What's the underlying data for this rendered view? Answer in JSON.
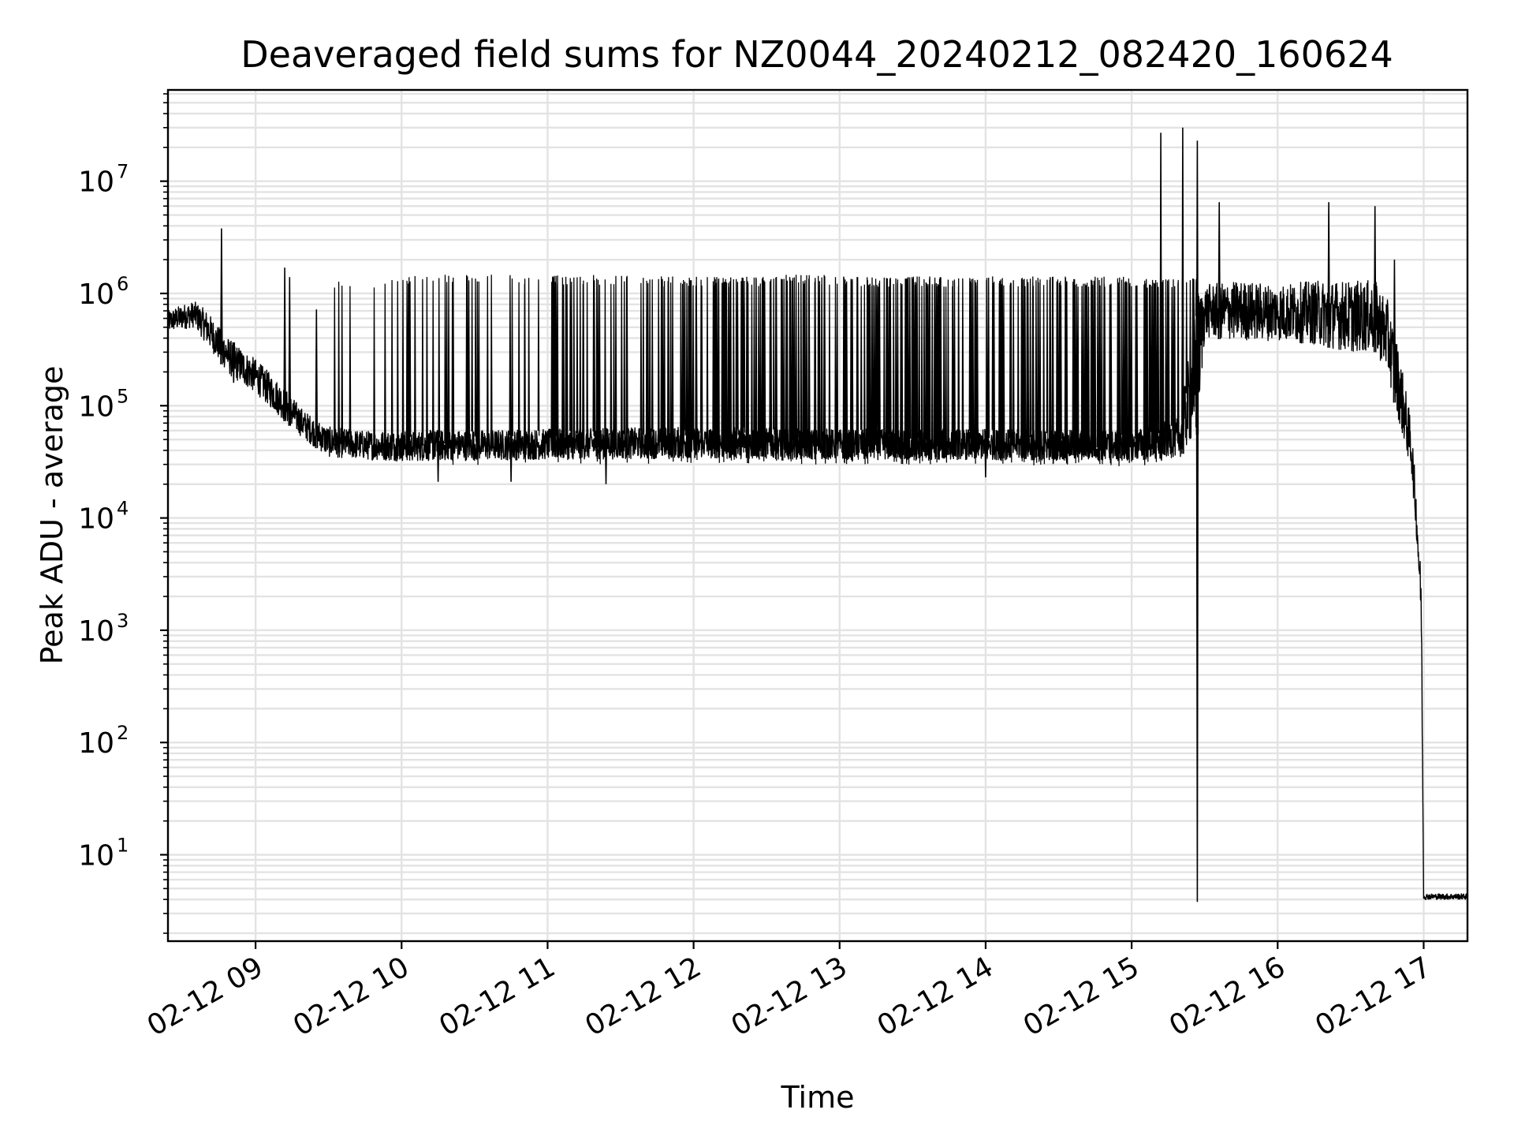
{
  "chart_data": {
    "type": "line",
    "title": "Deaveraged field sums for NZ0044_20240212_082420_160624",
    "xlabel": "Time",
    "ylabel": "Peak ADU - average",
    "x_axis_type": "time",
    "y_scale": "log",
    "xlim": [
      "2024-02-12T08:24",
      "2024-02-12T17:18"
    ],
    "ylim": [
      1.7,
      65000000
    ],
    "grid": true,
    "grid_minor": true,
    "legend": "none",
    "line_color": "#000000",
    "gridline_color": "#e3e3e3",
    "x_ticks": [
      {
        "value": "2024-02-12T09:00",
        "label": "02-12 09"
      },
      {
        "value": "2024-02-12T10:00",
        "label": "02-12 10"
      },
      {
        "value": "2024-02-12T11:00",
        "label": "02-12 11"
      },
      {
        "value": "2024-02-12T12:00",
        "label": "02-12 12"
      },
      {
        "value": "2024-02-12T13:00",
        "label": "02-12 13"
      },
      {
        "value": "2024-02-12T14:00",
        "label": "02-12 14"
      },
      {
        "value": "2024-02-12T15:00",
        "label": "02-12 15"
      },
      {
        "value": "2024-02-12T16:00",
        "label": "02-12 16"
      },
      {
        "value": "2024-02-12T17:00",
        "label": "02-12 17"
      }
    ],
    "y_ticks": [
      {
        "value": 10,
        "base": "10",
        "exp": "1"
      },
      {
        "value": 100,
        "base": "10",
        "exp": "2"
      },
      {
        "value": 1000,
        "base": "10",
        "exp": "3"
      },
      {
        "value": 10000,
        "base": "10",
        "exp": "4"
      },
      {
        "value": 100000,
        "base": "10",
        "exp": "5"
      },
      {
        "value": 1000000,
        "base": "10",
        "exp": "6"
      },
      {
        "value": 10000000,
        "base": "10",
        "exp": "7"
      }
    ],
    "series": [
      {
        "color": "#000000",
        "envelope": [
          {
            "x": "2024-02-12T08:24",
            "low": 450000,
            "high": 700000
          },
          {
            "x": "2024-02-12T08:30",
            "low": 480000,
            "high": 800000
          },
          {
            "x": "2024-02-12T08:35",
            "low": 500000,
            "high": 850000
          },
          {
            "x": "2024-02-12T08:40",
            "low": 350000,
            "high": 700000
          },
          {
            "x": "2024-02-12T08:45",
            "low": 250000,
            "high": 500000
          },
          {
            "x": "2024-02-12T08:50",
            "low": 180000,
            "high": 380000
          },
          {
            "x": "2024-02-12T09:00",
            "low": 130000,
            "high": 260000
          },
          {
            "x": "2024-02-12T09:10",
            "low": 80000,
            "high": 160000
          },
          {
            "x": "2024-02-12T09:20",
            "low": 50000,
            "high": 90000
          },
          {
            "x": "2024-02-12T09:30",
            "low": 35000,
            "high": 65000
          },
          {
            "x": "2024-02-12T09:45",
            "low": 33000,
            "high": 60000
          },
          {
            "x": "2024-02-12T10:00",
            "low": 32000,
            "high": 60000
          },
          {
            "x": "2024-02-12T11:00",
            "low": 33000,
            "high": 62000
          },
          {
            "x": "2024-02-12T12:00",
            "low": 34000,
            "high": 65000
          },
          {
            "x": "2024-02-12T13:00",
            "low": 33000,
            "high": 62000
          },
          {
            "x": "2024-02-12T14:00",
            "low": 33000,
            "high": 62000
          },
          {
            "x": "2024-02-12T15:00",
            "low": 32000,
            "high": 60000
          },
          {
            "x": "2024-02-12T15:20",
            "low": 35000,
            "high": 80000
          },
          {
            "x": "2024-02-12T15:27",
            "low": 55000,
            "high": 1000000
          },
          {
            "x": "2024-02-12T15:30",
            "low": 400000,
            "high": 1200000
          },
          {
            "x": "2024-02-12T15:45",
            "low": 380000,
            "high": 1300000
          },
          {
            "x": "2024-02-12T16:00",
            "low": 380000,
            "high": 1200000
          },
          {
            "x": "2024-02-12T16:15",
            "low": 350000,
            "high": 1300000
          },
          {
            "x": "2024-02-12T16:30",
            "low": 300000,
            "high": 1300000
          },
          {
            "x": "2024-02-12T16:40",
            "low": 300000,
            "high": 1300000
          },
          {
            "x": "2024-02-12T16:45",
            "low": 200000,
            "high": 900000
          },
          {
            "x": "2024-02-12T16:50",
            "low": 70000,
            "high": 300000
          },
          {
            "x": "2024-02-12T16:55",
            "low": 25000,
            "high": 70000
          },
          {
            "x": "2024-02-12T16:57",
            "low": 7000,
            "high": 16000
          },
          {
            "x": "2024-02-12T16:59",
            "low": 1000,
            "high": 3000
          },
          {
            "x": "2024-02-12T17:00",
            "low": 4,
            "high": 4.5
          },
          {
            "x": "2024-02-12T17:18",
            "low": 4,
            "high": 4.5
          }
        ],
        "spike_bands": [
          {
            "from": "2024-02-12T09:30",
            "to": "2024-02-12T10:00",
            "top": 1300000,
            "count": 8
          },
          {
            "from": "2024-02-12T10:00",
            "to": "2024-02-12T10:35",
            "top": 1400000,
            "count": 22
          },
          {
            "from": "2024-02-12T10:35",
            "to": "2024-02-12T11:00",
            "top": 1400000,
            "count": 10
          },
          {
            "from": "2024-02-12T11:00",
            "to": "2024-02-12T11:45",
            "top": 1400000,
            "count": 40
          },
          {
            "from": "2024-02-12T11:45",
            "to": "2024-02-12T12:30",
            "top": 1350000,
            "count": 70
          },
          {
            "from": "2024-02-12T12:30",
            "to": "2024-02-12T13:00",
            "top": 1400000,
            "count": 40
          },
          {
            "from": "2024-02-12T13:00",
            "to": "2024-02-12T14:00",
            "top": 1350000,
            "count": 100
          },
          {
            "from": "2024-02-12T14:00",
            "to": "2024-02-12T15:00",
            "top": 1350000,
            "count": 110
          },
          {
            "from": "2024-02-12T15:00",
            "to": "2024-02-12T15:27",
            "top": 1300000,
            "count": 45
          }
        ],
        "spikes": [
          {
            "x": "2024-02-12T08:46",
            "y": 3800000
          },
          {
            "x": "2024-02-12T09:12",
            "y": 1700000
          },
          {
            "x": "2024-02-12T09:14",
            "y": 1400000
          },
          {
            "x": "2024-02-12T09:25",
            "y": 720000
          },
          {
            "x": "2024-02-12T15:12",
            "y": 27000000
          },
          {
            "x": "2024-02-12T15:21",
            "y": 30000000
          },
          {
            "x": "2024-02-12T15:27",
            "y": 23000000
          },
          {
            "x": "2024-02-12T15:36",
            "y": 6500000
          },
          {
            "x": "2024-02-12T16:21",
            "y": 6500000
          },
          {
            "x": "2024-02-12T16:40",
            "y": 6000000
          },
          {
            "x": "2024-02-12T16:48",
            "y": 2000000
          }
        ],
        "dips": [
          {
            "x": "2024-02-12T08:51",
            "y": 160000
          },
          {
            "x": "2024-02-12T10:15",
            "y": 21000
          },
          {
            "x": "2024-02-12T10:45",
            "y": 21000
          },
          {
            "x": "2024-02-12T11:24",
            "y": 20000
          },
          {
            "x": "2024-02-12T14:00",
            "y": 23000
          },
          {
            "x": "2024-02-12T15:27",
            "y": 3.8
          }
        ]
      }
    ]
  }
}
